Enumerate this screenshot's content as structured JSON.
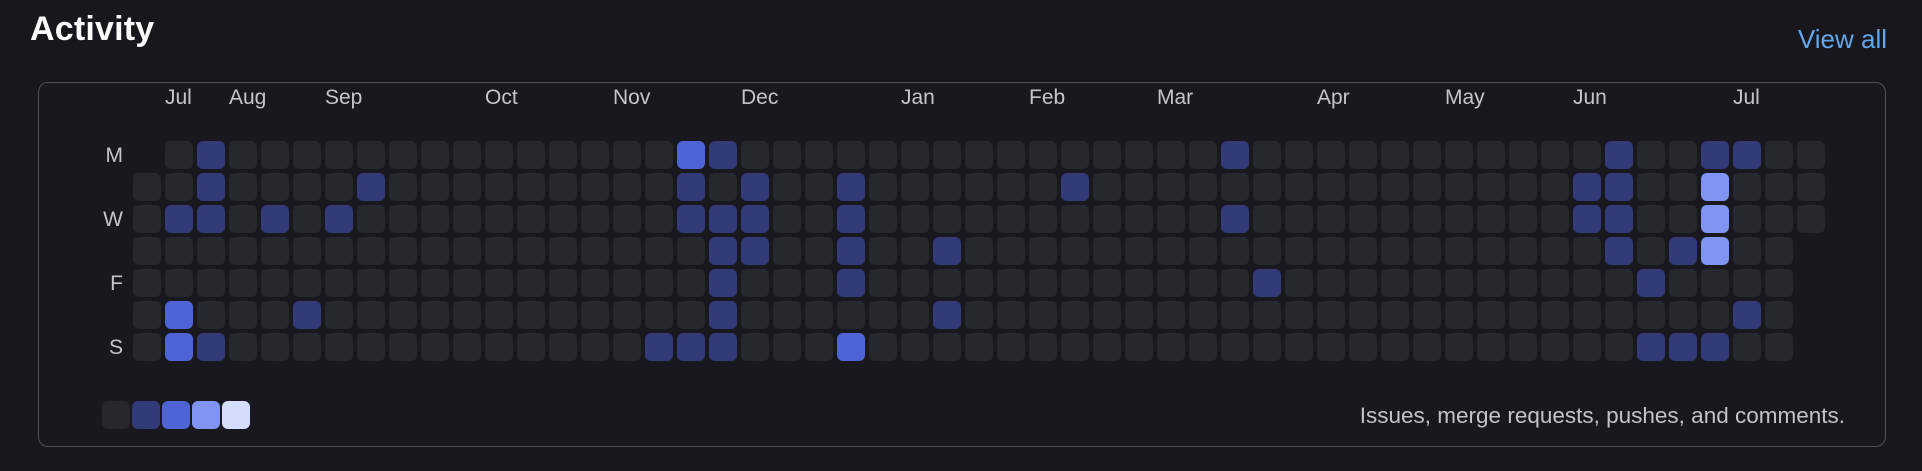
{
  "header": {
    "title": "Activity",
    "view_all_label": "View all"
  },
  "footer": {
    "caption": "Issues, merge requests, pushes, and comments."
  },
  "colors": {
    "background": "#18171d",
    "panel_border": "#51505a",
    "link": "#63a6e9",
    "label_text": "#c6c5cb",
    "title_text": "#fbfafd"
  },
  "chart_data": {
    "type": "heatmap",
    "title": "Activity",
    "x_axis": "weeks, 53 columns spanning Jul of one year to Jul of the next",
    "y_axis": "day of week, Mon (top) to Sun (bottom)",
    "day_rows": [
      "Mon",
      "Tue",
      "Wed",
      "Thu",
      "Fri",
      "Sat",
      "Sun"
    ],
    "day_labels_shown": [
      {
        "label": "M",
        "row": 1
      },
      {
        "label": "W",
        "row": 3
      },
      {
        "label": "F",
        "row": 5
      },
      {
        "label": "S",
        "row": 7
      }
    ],
    "month_labels": [
      {
        "label": "Jul",
        "week": 2
      },
      {
        "label": "Aug",
        "week": 4
      },
      {
        "label": "Sep",
        "week": 7
      },
      {
        "label": "Oct",
        "week": 12
      },
      {
        "label": "Nov",
        "week": 16
      },
      {
        "label": "Dec",
        "week": 20
      },
      {
        "label": "Jan",
        "week": 25
      },
      {
        "label": "Feb",
        "week": 29
      },
      {
        "label": "Mar",
        "week": 33
      },
      {
        "label": "Apr",
        "week": 38
      },
      {
        "label": "May",
        "week": 42
      },
      {
        "label": "Jun",
        "week": 46
      },
      {
        "label": "Jul",
        "week": 51
      }
    ],
    "level_colors": [
      "#27272e",
      "#333a78",
      "#4e64d4",
      "#8094f1",
      "#d4ddfc"
    ],
    "level_meaning": [
      "no activity",
      "low",
      "medium",
      "high",
      "very high"
    ],
    "legend_levels": [
      0,
      1,
      2,
      3,
      4
    ],
    "legend_caption": "Issues, merge requests, pushes, and comments.",
    "weeks_note": "-1 means day outside the date range (no cell drawn)",
    "weeks": [
      [
        -1,
        0,
        0,
        0,
        0,
        0,
        0
      ],
      [
        0,
        0,
        1,
        0,
        0,
        2,
        2
      ],
      [
        1,
        1,
        1,
        0,
        0,
        0,
        1
      ],
      [
        0,
        0,
        0,
        0,
        0,
        0,
        0
      ],
      [
        0,
        0,
        1,
        0,
        0,
        0,
        0
      ],
      [
        0,
        0,
        0,
        0,
        0,
        1,
        0
      ],
      [
        0,
        0,
        1,
        0,
        0,
        0,
        0
      ],
      [
        0,
        1,
        0,
        0,
        0,
        0,
        0
      ],
      [
        0,
        0,
        0,
        0,
        0,
        0,
        0
      ],
      [
        0,
        0,
        0,
        0,
        0,
        0,
        0
      ],
      [
        0,
        0,
        0,
        0,
        0,
        0,
        0
      ],
      [
        0,
        0,
        0,
        0,
        0,
        0,
        0
      ],
      [
        0,
        0,
        0,
        0,
        0,
        0,
        0
      ],
      [
        0,
        0,
        0,
        0,
        0,
        0,
        0
      ],
      [
        0,
        0,
        0,
        0,
        0,
        0,
        0
      ],
      [
        0,
        0,
        0,
        0,
        0,
        0,
        0
      ],
      [
        0,
        0,
        0,
        0,
        0,
        0,
        1
      ],
      [
        2,
        1,
        1,
        0,
        0,
        0,
        1
      ],
      [
        1,
        0,
        1,
        1,
        1,
        1,
        1
      ],
      [
        0,
        1,
        1,
        1,
        0,
        0,
        0
      ],
      [
        0,
        0,
        0,
        0,
        0,
        0,
        0
      ],
      [
        0,
        0,
        0,
        0,
        0,
        0,
        0
      ],
      [
        0,
        1,
        1,
        1,
        1,
        0,
        2
      ],
      [
        0,
        0,
        0,
        0,
        0,
        0,
        0
      ],
      [
        0,
        0,
        0,
        0,
        0,
        0,
        0
      ],
      [
        0,
        0,
        0,
        1,
        0,
        1,
        0
      ],
      [
        0,
        0,
        0,
        0,
        0,
        0,
        0
      ],
      [
        0,
        0,
        0,
        0,
        0,
        0,
        0
      ],
      [
        0,
        0,
        0,
        0,
        0,
        0,
        0
      ],
      [
        0,
        1,
        0,
        0,
        0,
        0,
        0
      ],
      [
        0,
        0,
        0,
        0,
        0,
        0,
        0
      ],
      [
        0,
        0,
        0,
        0,
        0,
        0,
        0
      ],
      [
        0,
        0,
        0,
        0,
        0,
        0,
        0
      ],
      [
        0,
        0,
        0,
        0,
        0,
        0,
        0
      ],
      [
        1,
        0,
        1,
        0,
        0,
        0,
        0
      ],
      [
        0,
        0,
        0,
        0,
        1,
        0,
        0
      ],
      [
        0,
        0,
        0,
        0,
        0,
        0,
        0
      ],
      [
        0,
        0,
        0,
        0,
        0,
        0,
        0
      ],
      [
        0,
        0,
        0,
        0,
        0,
        0,
        0
      ],
      [
        0,
        0,
        0,
        0,
        0,
        0,
        0
      ],
      [
        0,
        0,
        0,
        0,
        0,
        0,
        0
      ],
      [
        0,
        0,
        0,
        0,
        0,
        0,
        0
      ],
      [
        0,
        0,
        0,
        0,
        0,
        0,
        0
      ],
      [
        0,
        0,
        0,
        0,
        0,
        0,
        0
      ],
      [
        0,
        0,
        0,
        0,
        0,
        0,
        0
      ],
      [
        0,
        1,
        1,
        0,
        0,
        0,
        0
      ],
      [
        1,
        1,
        1,
        1,
        0,
        0,
        0
      ],
      [
        0,
        0,
        0,
        0,
        1,
        0,
        1
      ],
      [
        0,
        0,
        0,
        1,
        0,
        0,
        1
      ],
      [
        1,
        3,
        3,
        3,
        0,
        0,
        1
      ],
      [
        1,
        0,
        0,
        0,
        0,
        1,
        0
      ],
      [
        0,
        0,
        0,
        0,
        0,
        0,
        0
      ],
      [
        0,
        0,
        0,
        -1,
        -1,
        -1,
        -1
      ]
    ]
  }
}
